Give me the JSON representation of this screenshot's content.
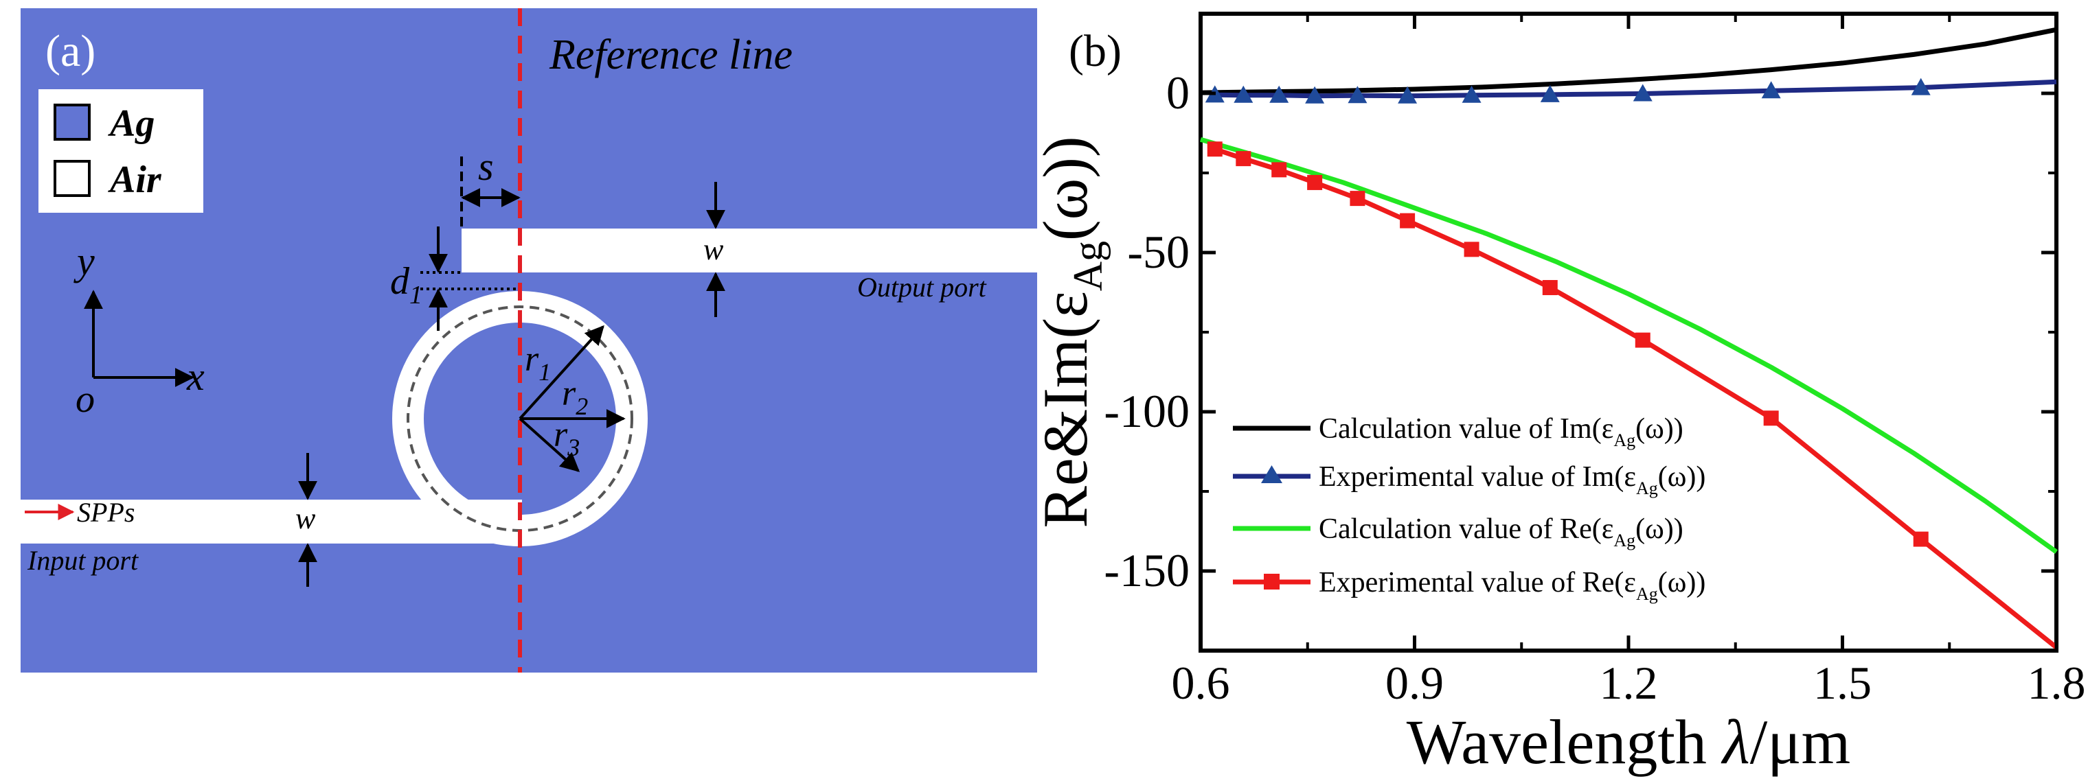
{
  "panel_a": {
    "label": "(a)",
    "reference_line_label": "Reference line",
    "legend": [
      {
        "name": "Ag",
        "color": "#6275d3"
      },
      {
        "name": "Air",
        "color": "#ffffff"
      }
    ],
    "axes": {
      "y": "y",
      "x": "x",
      "origin": "o"
    },
    "dims": {
      "s": "s",
      "w_top": "w",
      "w_bottom": "w",
      "d1_main": "d",
      "d1_sub": "1",
      "r1_main": "r",
      "r1_sub": "1",
      "r2_main": "r",
      "r2_sub": "2",
      "r3_main": "r",
      "r3_sub": "3"
    },
    "ports": {
      "output": "Output port",
      "input": "Input port",
      "source": "SPPs"
    },
    "colors": {
      "metal": "#6275d3",
      "air": "#ffffff",
      "reference": "#e21f26",
      "dashed_ring": "#555555"
    }
  },
  "panel_b": {
    "label": "(b)",
    "legend_labels": {
      "im_calc_pre": "Calculation value of Im(ε",
      "im_exp_pre": "Experimental value of Im(ε",
      "re_calc_pre": "Calculation value of Re(ε",
      "re_exp_pre": "Experimental value of Re(ε",
      "sub": "Ag",
      "post": "(ω))"
    },
    "axis_label_pieces": {
      "y_pre": "Re&Im(ε",
      "y_sub": "Ag",
      "y_post": "(ω))",
      "x_pre": "Wavelength ",
      "x_lambda": "λ",
      "x_post": "/μm"
    }
  },
  "chart_data": {
    "type": "line",
    "title": "",
    "xlabel": "Wavelength λ/μm",
    "ylabel": "Re&Im(ε_Ag(ω))",
    "xlim": [
      0.6,
      1.8
    ],
    "ylim": [
      -175,
      25
    ],
    "xticks": [
      0.6,
      0.9,
      1.2,
      1.5,
      1.8
    ],
    "yticks": [
      0,
      -50,
      -100,
      -150
    ],
    "xtick_labels": [
      "0.6",
      "0.9",
      "1.2",
      "1.5",
      "1.8"
    ],
    "ytick_labels": [
      "0",
      "-50",
      "-100",
      "-150"
    ],
    "legend_position": "lower-left",
    "series": [
      {
        "name": "Calculation value of Im(ε_Ag(ω))",
        "color": "#000000",
        "marker": "none",
        "x": [
          0.6,
          0.7,
          0.8,
          0.9,
          1.0,
          1.1,
          1.2,
          1.3,
          1.4,
          1.5,
          1.6,
          1.7,
          1.8
        ],
        "y": [
          0.2,
          0.5,
          0.8,
          1.3,
          2.0,
          3.0,
          4.2,
          5.6,
          7.4,
          9.5,
          12.2,
          15.5,
          20
        ]
      },
      {
        "name": "Experimental value of Im(ε_Ag(ω))",
        "color": "#1f2a84",
        "marker": "triangle",
        "x": [
          0.62,
          0.66,
          0.71,
          0.76,
          0.82,
          0.89,
          0.98,
          1.09,
          1.22,
          1.4,
          1.61,
          1.8
        ],
        "y": [
          -0.5,
          -0.6,
          -0.6,
          -0.8,
          -0.7,
          -0.8,
          -0.6,
          -0.4,
          -0.1,
          0.8,
          1.8,
          3.6
        ],
        "marker_x": [
          0.62,
          0.66,
          0.71,
          0.76,
          0.82,
          0.89,
          0.98,
          1.09,
          1.22,
          1.4,
          1.61
        ]
      },
      {
        "name": "Calculation value of Re(ε_Ag(ω))",
        "color": "#22e622",
        "marker": "none",
        "x": [
          0.6,
          0.7,
          0.8,
          0.9,
          1.0,
          1.1,
          1.2,
          1.3,
          1.4,
          1.5,
          1.6,
          1.7,
          1.8
        ],
        "y": [
          -14.5,
          -21,
          -28,
          -36,
          -44,
          -53,
          -63,
          -74,
          -86,
          -99,
          -113,
          -128,
          -144
        ]
      },
      {
        "name": "Experimental value of Re(ε_Ag(ω))",
        "color": "#ee1b1b",
        "marker": "square",
        "x": [
          0.62,
          0.66,
          0.71,
          0.76,
          0.82,
          0.89,
          0.98,
          1.09,
          1.22,
          1.4,
          1.61,
          1.8
        ],
        "y": [
          -17.5,
          -20.5,
          -24,
          -28,
          -33,
          -40,
          -49,
          -61,
          -77.5,
          -102,
          -140,
          -174
        ],
        "marker_x": [
          0.62,
          0.66,
          0.71,
          0.76,
          0.82,
          0.89,
          0.98,
          1.09,
          1.22,
          1.4,
          1.61
        ]
      }
    ]
  }
}
